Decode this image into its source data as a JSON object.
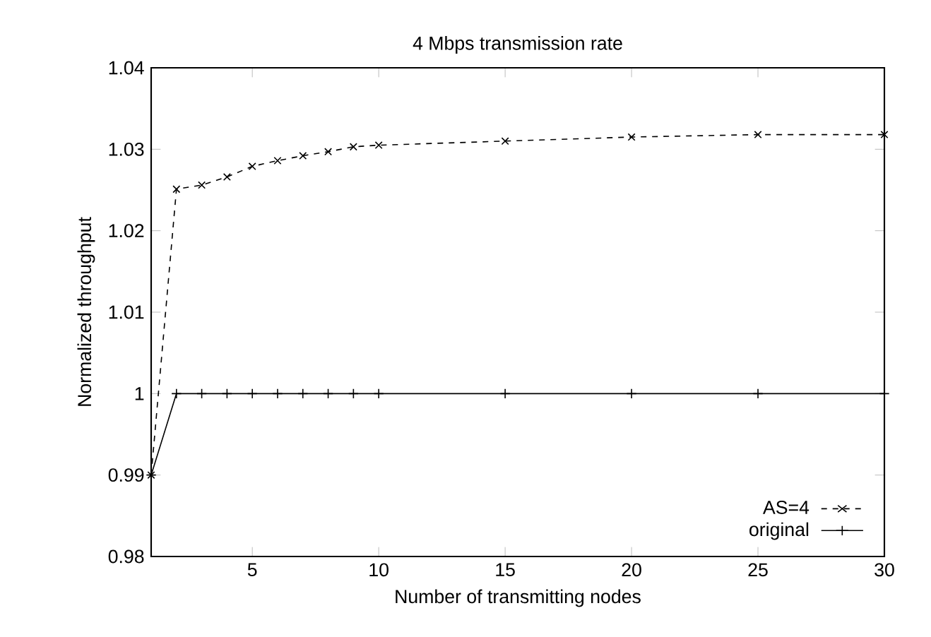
{
  "chart_data": {
    "type": "line",
    "title": "4 Mbps transmission rate",
    "xlabel": "Number of transmitting nodes",
    "ylabel": "Normalized throughput",
    "x": [
      1,
      2,
      3,
      4,
      5,
      6,
      7,
      8,
      9,
      10,
      15,
      20,
      25,
      30
    ],
    "series": [
      {
        "name": "AS=4",
        "color": "#000000",
        "marker": "cross",
        "line_style": "dashed",
        "values": [
          0.99,
          1.0251,
          1.0256,
          1.0266,
          1.0279,
          1.0286,
          1.0292,
          1.0297,
          1.0303,
          1.0305,
          1.031,
          1.0315,
          1.0318,
          1.0318
        ]
      },
      {
        "name": "original",
        "color": "#000000",
        "marker": "plus",
        "line_style": "solid",
        "values": [
          0.99,
          1,
          1,
          1,
          1,
          1,
          1,
          1,
          1,
          1,
          1,
          1,
          1,
          1
        ]
      }
    ],
    "xlim": [
      1,
      30
    ],
    "ylim": [
      0.98,
      1.04
    ],
    "xticks": [
      5,
      10,
      15,
      20,
      25,
      30
    ],
    "yticks": [
      0.98,
      0.99,
      1,
      1.01,
      1.02,
      1.03,
      1.04
    ],
    "grid": false,
    "legend": "bottom right"
  }
}
